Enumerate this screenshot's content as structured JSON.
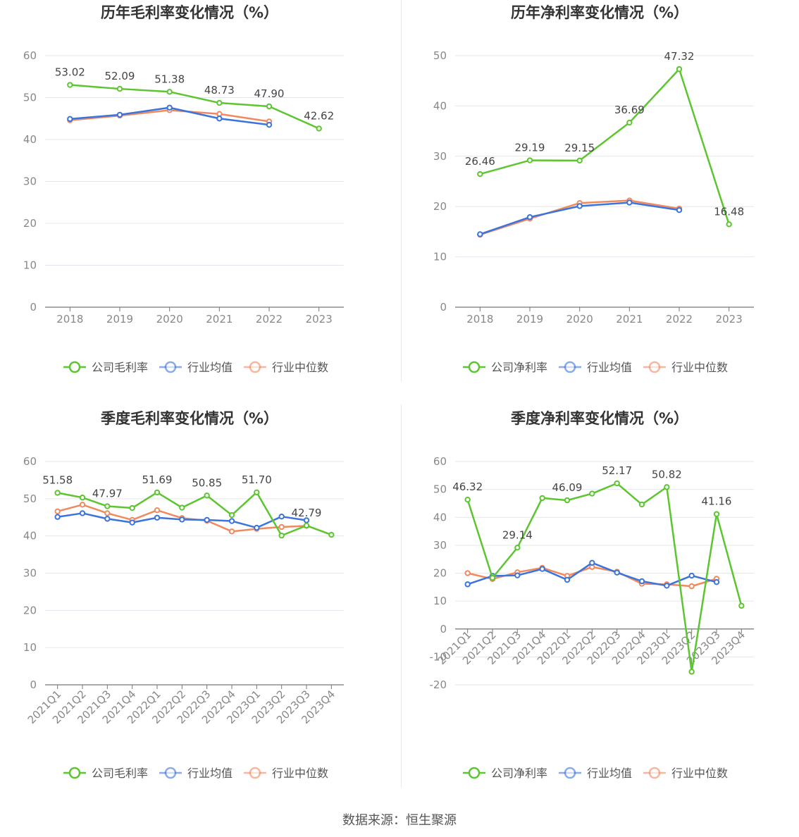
{
  "source": "数据来源：恒生聚源",
  "colors": {
    "company": "#5cc530",
    "avg": "#3a74dc",
    "median": "#f08a5e"
  },
  "charts": [
    {
      "id": "annual-gross",
      "title": "历年毛利率变化情况（%）",
      "chart_data": {
        "type": "line",
        "title": "历年毛利率变化情况（%）",
        "categories": [
          "2018",
          "2019",
          "2020",
          "2021",
          "2022",
          "2023"
        ],
        "ylim": [
          0,
          60
        ],
        "yticks": [
          0,
          10,
          20,
          30,
          40,
          50,
          60
        ],
        "grid": true,
        "legend": "bottom",
        "series": [
          {
            "name": "公司毛利率",
            "key": "company",
            "values": [
              53.02,
              52.09,
              51.38,
              48.73,
              47.9,
              42.62
            ],
            "labels": [
              "53.02",
              "52.09",
              "51.38",
              "48.73",
              "47.90",
              "42.62"
            ]
          },
          {
            "name": "行业均值",
            "key": "avg",
            "values": [
              44.9,
              45.9,
              47.6,
              45.0,
              43.5,
              null
            ]
          },
          {
            "name": "行业中位数",
            "key": "median",
            "values": [
              44.6,
              45.7,
              47.0,
              46.1,
              44.3,
              null
            ]
          }
        ]
      }
    },
    {
      "id": "annual-net",
      "title": "历年净利率变化情况（%）",
      "chart_data": {
        "type": "line",
        "title": "历年净利率变化情况（%）",
        "categories": [
          "2018",
          "2019",
          "2020",
          "2021",
          "2022",
          "2023"
        ],
        "ylim": [
          0,
          50
        ],
        "yticks": [
          0,
          10,
          20,
          30,
          40,
          50
        ],
        "grid": true,
        "legend": "bottom",
        "series": [
          {
            "name": "公司净利率",
            "key": "company",
            "values": [
              26.46,
              29.19,
              29.15,
              36.69,
              47.32,
              16.48
            ],
            "labels": [
              "26.46",
              "29.19",
              "29.15",
              "36.69",
              "47.32",
              "16.48"
            ]
          },
          {
            "name": "行业均值",
            "key": "avg",
            "values": [
              14.5,
              17.9,
              20.1,
              20.8,
              19.3,
              null
            ]
          },
          {
            "name": "行业中位数",
            "key": "median",
            "values": [
              14.4,
              17.6,
              20.7,
              21.2,
              19.6,
              null
            ]
          }
        ]
      }
    },
    {
      "id": "quarterly-gross",
      "title": "季度毛利率变化情况（%）",
      "chart_data": {
        "type": "line",
        "title": "季度毛利率变化情况（%）",
        "categories": [
          "2021Q1",
          "2021Q2",
          "2021Q3",
          "2021Q4",
          "2022Q1",
          "2022Q2",
          "2022Q3",
          "2022Q4",
          "2023Q1",
          "2023Q2",
          "2023Q3",
          "2023Q4"
        ],
        "ylim": [
          0,
          60
        ],
        "yticks": [
          0,
          10,
          20,
          30,
          40,
          50,
          60
        ],
        "grid": true,
        "legend": "bottom",
        "series": [
          {
            "name": "公司毛利率",
            "key": "company",
            "values": [
              51.58,
              50.3,
              47.97,
              47.5,
              51.69,
              47.6,
              50.85,
              45.6,
              51.7,
              40.1,
              42.79,
              40.3
            ],
            "labels": [
              "51.58",
              null,
              "47.97",
              null,
              "51.69",
              null,
              "50.85",
              null,
              "51.70",
              null,
              "42.79",
              null
            ]
          },
          {
            "name": "行业均值",
            "key": "avg",
            "values": [
              45.1,
              46.1,
              44.6,
              43.6,
              44.9,
              44.4,
              44.3,
              44.0,
              42.2,
              45.2,
              44.2,
              null
            ]
          },
          {
            "name": "行业中位数",
            "key": "median",
            "values": [
              46.6,
              48.4,
              46.1,
              44.3,
              46.9,
              44.8,
              44.1,
              41.2,
              41.9,
              42.4,
              42.7,
              null
            ]
          }
        ]
      }
    },
    {
      "id": "quarterly-net",
      "title": "季度净利率变化情况（%）",
      "chart_data": {
        "type": "line",
        "title": "季度净利率变化情况（%）",
        "categories": [
          "2021Q1",
          "2021Q2",
          "2021Q3",
          "2021Q4",
          "2022Q1",
          "2022Q2",
          "2022Q3",
          "2022Q4",
          "2023Q1",
          "2023Q2",
          "2023Q3",
          "2023Q4"
        ],
        "ylim": [
          -20,
          60
        ],
        "yticks": [
          -20,
          -10,
          0,
          10,
          20,
          30,
          40,
          50,
          60
        ],
        "grid": true,
        "legend": "bottom",
        "series": [
          {
            "name": "公司净利率",
            "key": "company",
            "values": [
              46.32,
              18.3,
              29.14,
              46.9,
              46.09,
              48.5,
              52.17,
              44.6,
              50.82,
              -15.3,
              41.16,
              8.3
            ],
            "labels": [
              "46.32",
              null,
              "29.14",
              null,
              "46.09",
              null,
              "52.17",
              null,
              "50.82",
              null,
              "41.16",
              null
            ]
          },
          {
            "name": "行业均值",
            "key": "avg",
            "values": [
              16.0,
              19.0,
              19.2,
              21.5,
              17.6,
              23.7,
              20.2,
              17.1,
              15.5,
              19.1,
              16.8,
              null
            ]
          },
          {
            "name": "行业中位数",
            "key": "median",
            "values": [
              20.0,
              17.9,
              20.3,
              21.9,
              19.0,
              22.2,
              20.5,
              16.2,
              16.0,
              15.3,
              18.0,
              null
            ]
          }
        ]
      }
    }
  ]
}
